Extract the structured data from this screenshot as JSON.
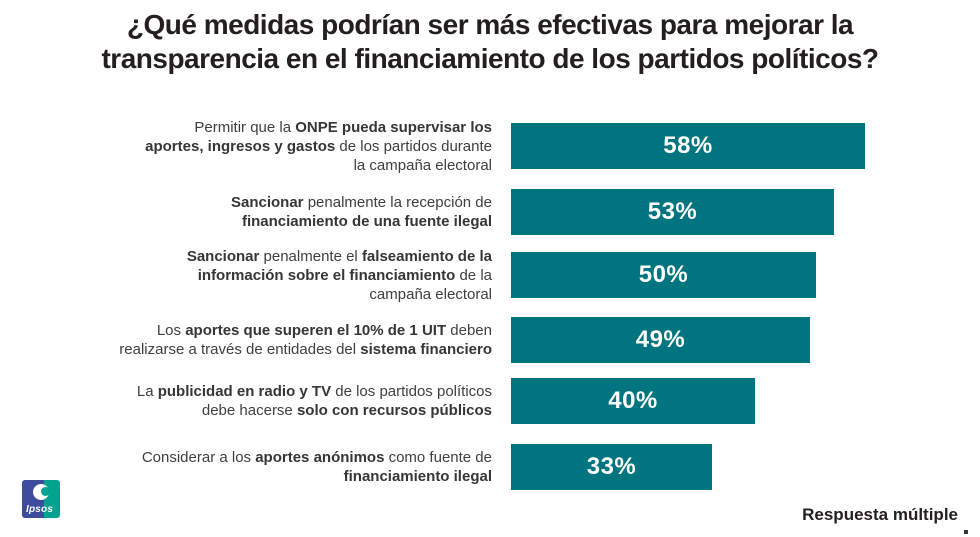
{
  "title": {
    "text": "¿Qué medidas podrían ser más efectivas para mejorar la\ntransparencia en el financiamiento de los partidos políticos?"
  },
  "chart_data": {
    "type": "bar",
    "orientation": "horizontal",
    "title": "¿Qué medidas podrían ser más efectivas para mejorar la transparencia en el financiamiento de los partidos políticos?",
    "categories": [
      "Permitir que la ONPE pueda supervisar los aportes, ingresos y gastos de los partidos durante la campaña electoral",
      "Sancionar penalmente la recepción de financiamiento de una fuente ilegal",
      "Sancionar penalmente el falseamiento de la información sobre el financiamiento de la campaña electoral",
      "Los aportes que superen el 10% de 1 UIT deben realizarse a través de entidades del sistema financiero",
      "La publicidad en radio y TV de los partidos políticos debe hacerse solo con recursos públicos",
      "Considerar a los aportes anónimos como fuente de financiamiento ilegal"
    ],
    "values": [
      58,
      53,
      50,
      49,
      40,
      33
    ],
    "value_labels": [
      "58%",
      "53%",
      "50%",
      "49%",
      "40%",
      "33%"
    ],
    "unit": "%",
    "xlim": [
      0,
      100
    ],
    "grid": false,
    "legend": false,
    "bar_color": "#00747F",
    "value_label_color": "#FFFFFF",
    "note": "Respuesta múltiple"
  },
  "rows": [
    {
      "value": 58,
      "value_label": "58%",
      "segments": [
        {
          "text": "Permitir que la ",
          "bold": false
        },
        {
          "text": "ONPE pueda supervisar los\naportes, ingresos y gastos",
          "bold": true
        },
        {
          "text": " de los partidos durante\nla campaña electoral",
          "bold": false
        }
      ]
    },
    {
      "value": 53,
      "value_label": "53%",
      "segments": [
        {
          "text": "Sancionar",
          "bold": true
        },
        {
          "text": " penalmente la recepción de\n",
          "bold": false
        },
        {
          "text": "financiamiento de una fuente ilegal",
          "bold": true
        }
      ]
    },
    {
      "value": 50,
      "value_label": "50%",
      "segments": [
        {
          "text": "Sancionar",
          "bold": true
        },
        {
          "text": " penalmente el ",
          "bold": false
        },
        {
          "text": "falseamiento de la\ninformación sobre el financiamiento",
          "bold": true
        },
        {
          "text": " de la\ncampaña electoral",
          "bold": false
        }
      ]
    },
    {
      "value": 49,
      "value_label": "49%",
      "segments": [
        {
          "text": "Los ",
          "bold": false
        },
        {
          "text": "aportes que superen el 10% de 1 UIT",
          "bold": true
        },
        {
          "text": " deben\nrealizarse a través de entidades del ",
          "bold": false
        },
        {
          "text": "sistema financiero",
          "bold": true
        }
      ]
    },
    {
      "value": 40,
      "value_label": "40%",
      "segments": [
        {
          "text": "La ",
          "bold": false
        },
        {
          "text": "publicidad en radio y TV",
          "bold": true
        },
        {
          "text": " de los partidos políticos\ndebe hacerse ",
          "bold": false
        },
        {
          "text": "solo con recursos públicos",
          "bold": true
        }
      ]
    },
    {
      "value": 33,
      "value_label": "33%",
      "segments": [
        {
          "text": "Considerar a los ",
          "bold": false
        },
        {
          "text": "aportes anónimos",
          "bold": true
        },
        {
          "text": " como fuente de\n",
          "bold": false
        },
        {
          "text": "financiamiento ilegal",
          "bold": true
        }
      ]
    }
  ],
  "footer": {
    "note": "Respuesta múltiple"
  },
  "logo": {
    "label": "Ipsos",
    "color_left": "#3E4C9E",
    "color_right": "#00A48E"
  }
}
